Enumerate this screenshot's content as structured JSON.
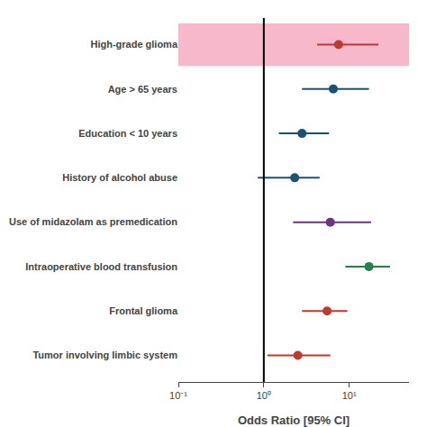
{
  "chart_data": {
    "type": "forest",
    "categories": [
      "High-grade glioma",
      "Age > 65 years",
      "Education < 10 years",
      "History of alcohol abuse",
      "Use of midazolam as premedication",
      "Intraoperative blood transfusion",
      "Frontal glioma",
      "Tumor involving limbic system"
    ],
    "values": [
      7.5,
      6.5,
      2.8,
      2.3,
      6.0,
      17.0,
      5.5,
      2.5
    ],
    "ci_low": [
      4.2,
      2.8,
      1.5,
      0.85,
      2.2,
      9.0,
      2.8,
      1.1
    ],
    "ci_high": [
      22.0,
      17.0,
      5.8,
      4.5,
      18.0,
      30.0,
      9.5,
      6.0
    ],
    "colors": [
      "#c0392b",
      "#1a5276",
      "#1a5276",
      "#1a5276",
      "#6c3483",
      "#1e8449",
      "#c0392b",
      "#c0392b"
    ],
    "highlight": {
      "category": "High-grade glioma",
      "color": "#f7b8cc"
    },
    "reference_x": 1,
    "xlabel": "Odds Ratio [95% CI]",
    "log": "x",
    "xlim": [
      0.1,
      50
    ],
    "xticks": [
      {
        "value": 0.1,
        "label": "10⁻¹"
      },
      {
        "value": 1,
        "label": "10⁰"
      },
      {
        "value": 10,
        "label": "10¹"
      }
    ],
    "grid": false,
    "marker": "circle",
    "background_color": "#ffffff"
  }
}
